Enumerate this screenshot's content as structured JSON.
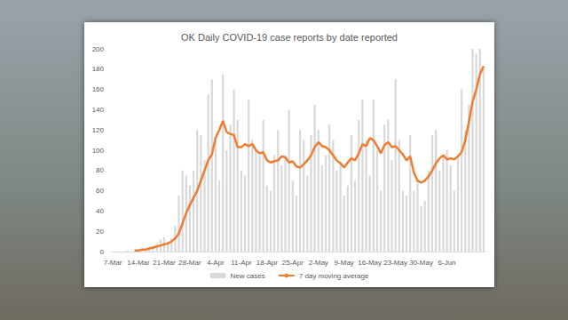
{
  "chart_data": {
    "type": "bar",
    "title": "OK Daily COVID-19 case reports by date reported",
    "categories": [
      "7-Mar",
      null,
      null,
      null,
      null,
      null,
      null,
      "14-Mar",
      null,
      null,
      null,
      null,
      null,
      null,
      "21-Mar",
      null,
      null,
      null,
      null,
      null,
      null,
      "28-Mar",
      null,
      null,
      null,
      null,
      null,
      null,
      "4-Apr",
      null,
      null,
      null,
      null,
      null,
      null,
      "11-Apr",
      null,
      null,
      null,
      null,
      null,
      null,
      "18-Apr",
      null,
      null,
      null,
      null,
      null,
      null,
      "25-Apr",
      null,
      null,
      null,
      null,
      null,
      null,
      "2-May",
      null,
      null,
      null,
      null,
      null,
      null,
      "9-May",
      null,
      null,
      null,
      null,
      null,
      null,
      "16-May",
      null,
      null,
      null,
      null,
      null,
      null,
      "23-May",
      null,
      null,
      null,
      null,
      null,
      null,
      "30-May",
      null,
      null,
      null,
      null,
      null,
      null,
      "6-Jun",
      null,
      null,
      null,
      null,
      null,
      null,
      null,
      null,
      null,
      null
    ],
    "series": [
      {
        "name": "New cases",
        "type": "bar",
        "color": "#d9d9d9",
        "values": [
          0,
          0,
          0,
          0,
          1,
          0,
          2,
          1,
          2,
          3,
          5,
          4,
          8,
          12,
          14,
          10,
          13,
          25,
          55,
          80,
          75,
          65,
          80,
          120,
          115,
          90,
          155,
          170,
          110,
          70,
          175,
          100,
          125,
          160,
          130,
          80,
          75,
          150,
          110,
          100,
          95,
          130,
          65,
          60,
          95,
          120,
          85,
          95,
          140,
          70,
          55,
          120,
          110,
          75,
          115,
          145,
          120,
          85,
          95,
          125,
          110,
          80,
          85,
          55,
          65,
          115,
          70,
          130,
          150,
          110,
          75,
          150,
          100,
          60,
          125,
          130,
          90,
          170,
          110,
          60,
          55,
          115,
          60,
          70,
          45,
          50,
          80,
          115,
          120,
          80,
          95,
          100,
          85,
          60,
          95,
          160,
          120,
          145,
          200,
          195,
          200,
          180
        ]
      },
      {
        "name": "7 day moving average",
        "type": "line",
        "color": "#ed7d31",
        "values": [
          null,
          null,
          null,
          null,
          null,
          null,
          1,
          1,
          2,
          2,
          3,
          4,
          5,
          6,
          7,
          8,
          10,
          13,
          18,
          28,
          38,
          46,
          53,
          60,
          70,
          80,
          90,
          96,
          112,
          120,
          129,
          118,
          116,
          115,
          103,
          103,
          106,
          104,
          106,
          100,
          97,
          98,
          90,
          88,
          89,
          90,
          94,
          93,
          88,
          89,
          84,
          83,
          86,
          90,
          95,
          103,
          108,
          104,
          103,
          100,
          95,
          90,
          87,
          83,
          88,
          92,
          90,
          97,
          106,
          104,
          112,
          110,
          104,
          97,
          105,
          108,
          103,
          104,
          100,
          96,
          90,
          94,
          78,
          70,
          68,
          70,
          74,
          80,
          87,
          92,
          95,
          91,
          92,
          91,
          94,
          98,
          110,
          128,
          148,
          160,
          175,
          183
        ]
      }
    ],
    "ylim": [
      0,
      200
    ],
    "yticks": [
      0,
      20,
      40,
      60,
      80,
      100,
      120,
      140,
      160,
      180,
      200
    ],
    "grid": false,
    "legend": "bottom"
  }
}
